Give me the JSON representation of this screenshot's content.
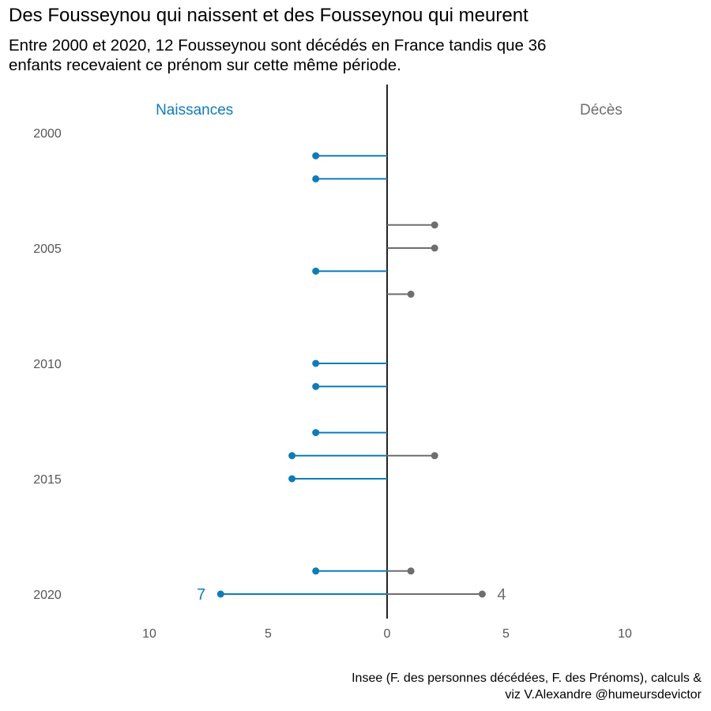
{
  "title": "Des Fousseynou qui naissent et des Fousseynou qui meurent",
  "subtitle_lines": [
    "Entre 2000 et 2020, 12 Fousseynou sont décédés en France tandis que 36",
    "enfants recevaient ce prénom sur cette même période."
  ],
  "caption_lines": [
    "Insee (F. des personnes décédées, F. des Prénoms), calculs &",
    "viz V.Alexandre @humeursdevictor"
  ],
  "colors": {
    "births": "#0f7cb8",
    "deaths": "#6e6e6e",
    "axis": "#222222",
    "ticks": "#555555"
  },
  "chart_data": {
    "type": "diverging-lollipop",
    "legend_left": "Naissances",
    "legend_right": "Décès",
    "y_ticks": [
      2000,
      2005,
      2010,
      2015,
      2020
    ],
    "x_ticks": [
      {
        "value": -10,
        "label": "10"
      },
      {
        "value": -5,
        "label": "5"
      },
      {
        "value": 0,
        "label": "0"
      },
      {
        "value": 5,
        "label": "5"
      },
      {
        "value": 10,
        "label": "10"
      }
    ],
    "xlim": [
      -12,
      12
    ],
    "ylim": [
      2000,
      2020
    ],
    "series": [
      {
        "name": "Naissances",
        "side": "left",
        "points": [
          {
            "year": 2001,
            "value": 3
          },
          {
            "year": 2002,
            "value": 3
          },
          {
            "year": 2006,
            "value": 3
          },
          {
            "year": 2010,
            "value": 3
          },
          {
            "year": 2011,
            "value": 3
          },
          {
            "year": 2013,
            "value": 3
          },
          {
            "year": 2014,
            "value": 4
          },
          {
            "year": 2015,
            "value": 4
          },
          {
            "year": 2019,
            "value": 3
          },
          {
            "year": 2020,
            "value": 7
          }
        ]
      },
      {
        "name": "Décès",
        "side": "right",
        "points": [
          {
            "year": 2004,
            "value": 2
          },
          {
            "year": 2005,
            "value": 2
          },
          {
            "year": 2007,
            "value": 1
          },
          {
            "year": 2014,
            "value": 2
          },
          {
            "year": 2019,
            "value": 1
          },
          {
            "year": 2020,
            "value": 4
          }
        ]
      }
    ],
    "annotations": [
      {
        "series": "Naissances",
        "year": 2020,
        "text": "7"
      },
      {
        "series": "Décès",
        "year": 2020,
        "text": "4"
      }
    ]
  }
}
